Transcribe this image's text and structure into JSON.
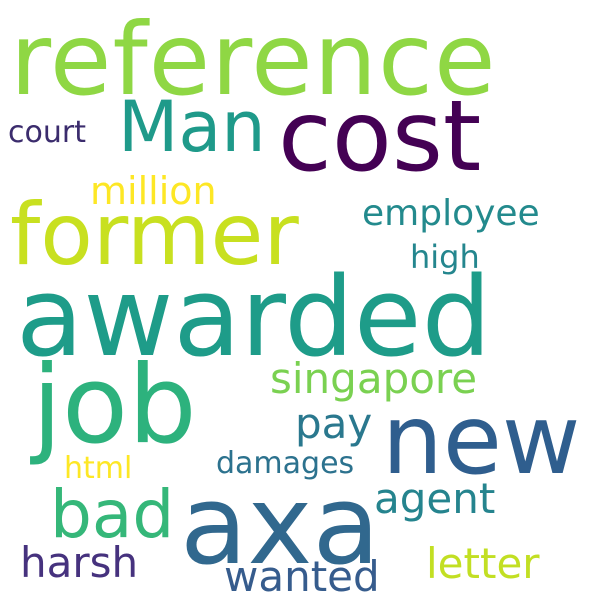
{
  "word_cloud": {
    "background": "#ffffff",
    "words": [
      {
        "id": "reference",
        "text": "reference",
        "color": "#8fd744"
      },
      {
        "id": "cost",
        "text": "cost",
        "color": "#440154"
      },
      {
        "id": "man",
        "text": "Man",
        "color": "#1f9a8a"
      },
      {
        "id": "court",
        "text": "court",
        "color": "#3b2c6d"
      },
      {
        "id": "million",
        "text": "million",
        "color": "#fde725"
      },
      {
        "id": "former",
        "text": "former",
        "color": "#c8e020"
      },
      {
        "id": "employee",
        "text": "employee",
        "color": "#238a8d"
      },
      {
        "id": "high",
        "text": "high",
        "color": "#24868e"
      },
      {
        "id": "awarded",
        "text": "awarded",
        "color": "#1e9c89"
      },
      {
        "id": "singapore",
        "text": "singapore",
        "color": "#7ad151"
      },
      {
        "id": "job",
        "text": "job",
        "color": "#2db27d"
      },
      {
        "id": "new",
        "text": "new",
        "color": "#2f5e8e"
      },
      {
        "id": "pay",
        "text": "pay",
        "color": "#2a788e"
      },
      {
        "id": "html",
        "text": "html",
        "color": "#fde725"
      },
      {
        "id": "damages",
        "text": "damages",
        "color": "#2c728e"
      },
      {
        "id": "bad",
        "text": "bad",
        "color": "#35b779"
      },
      {
        "id": "axa",
        "text": "axa",
        "color": "#31688e"
      },
      {
        "id": "agent",
        "text": "agent",
        "color": "#25848e"
      },
      {
        "id": "harsh",
        "text": "harsh",
        "color": "#46327e"
      },
      {
        "id": "wanted",
        "text": "wanted",
        "color": "#365c8d"
      },
      {
        "id": "letter",
        "text": "letter",
        "color": "#c2df23"
      }
    ]
  }
}
